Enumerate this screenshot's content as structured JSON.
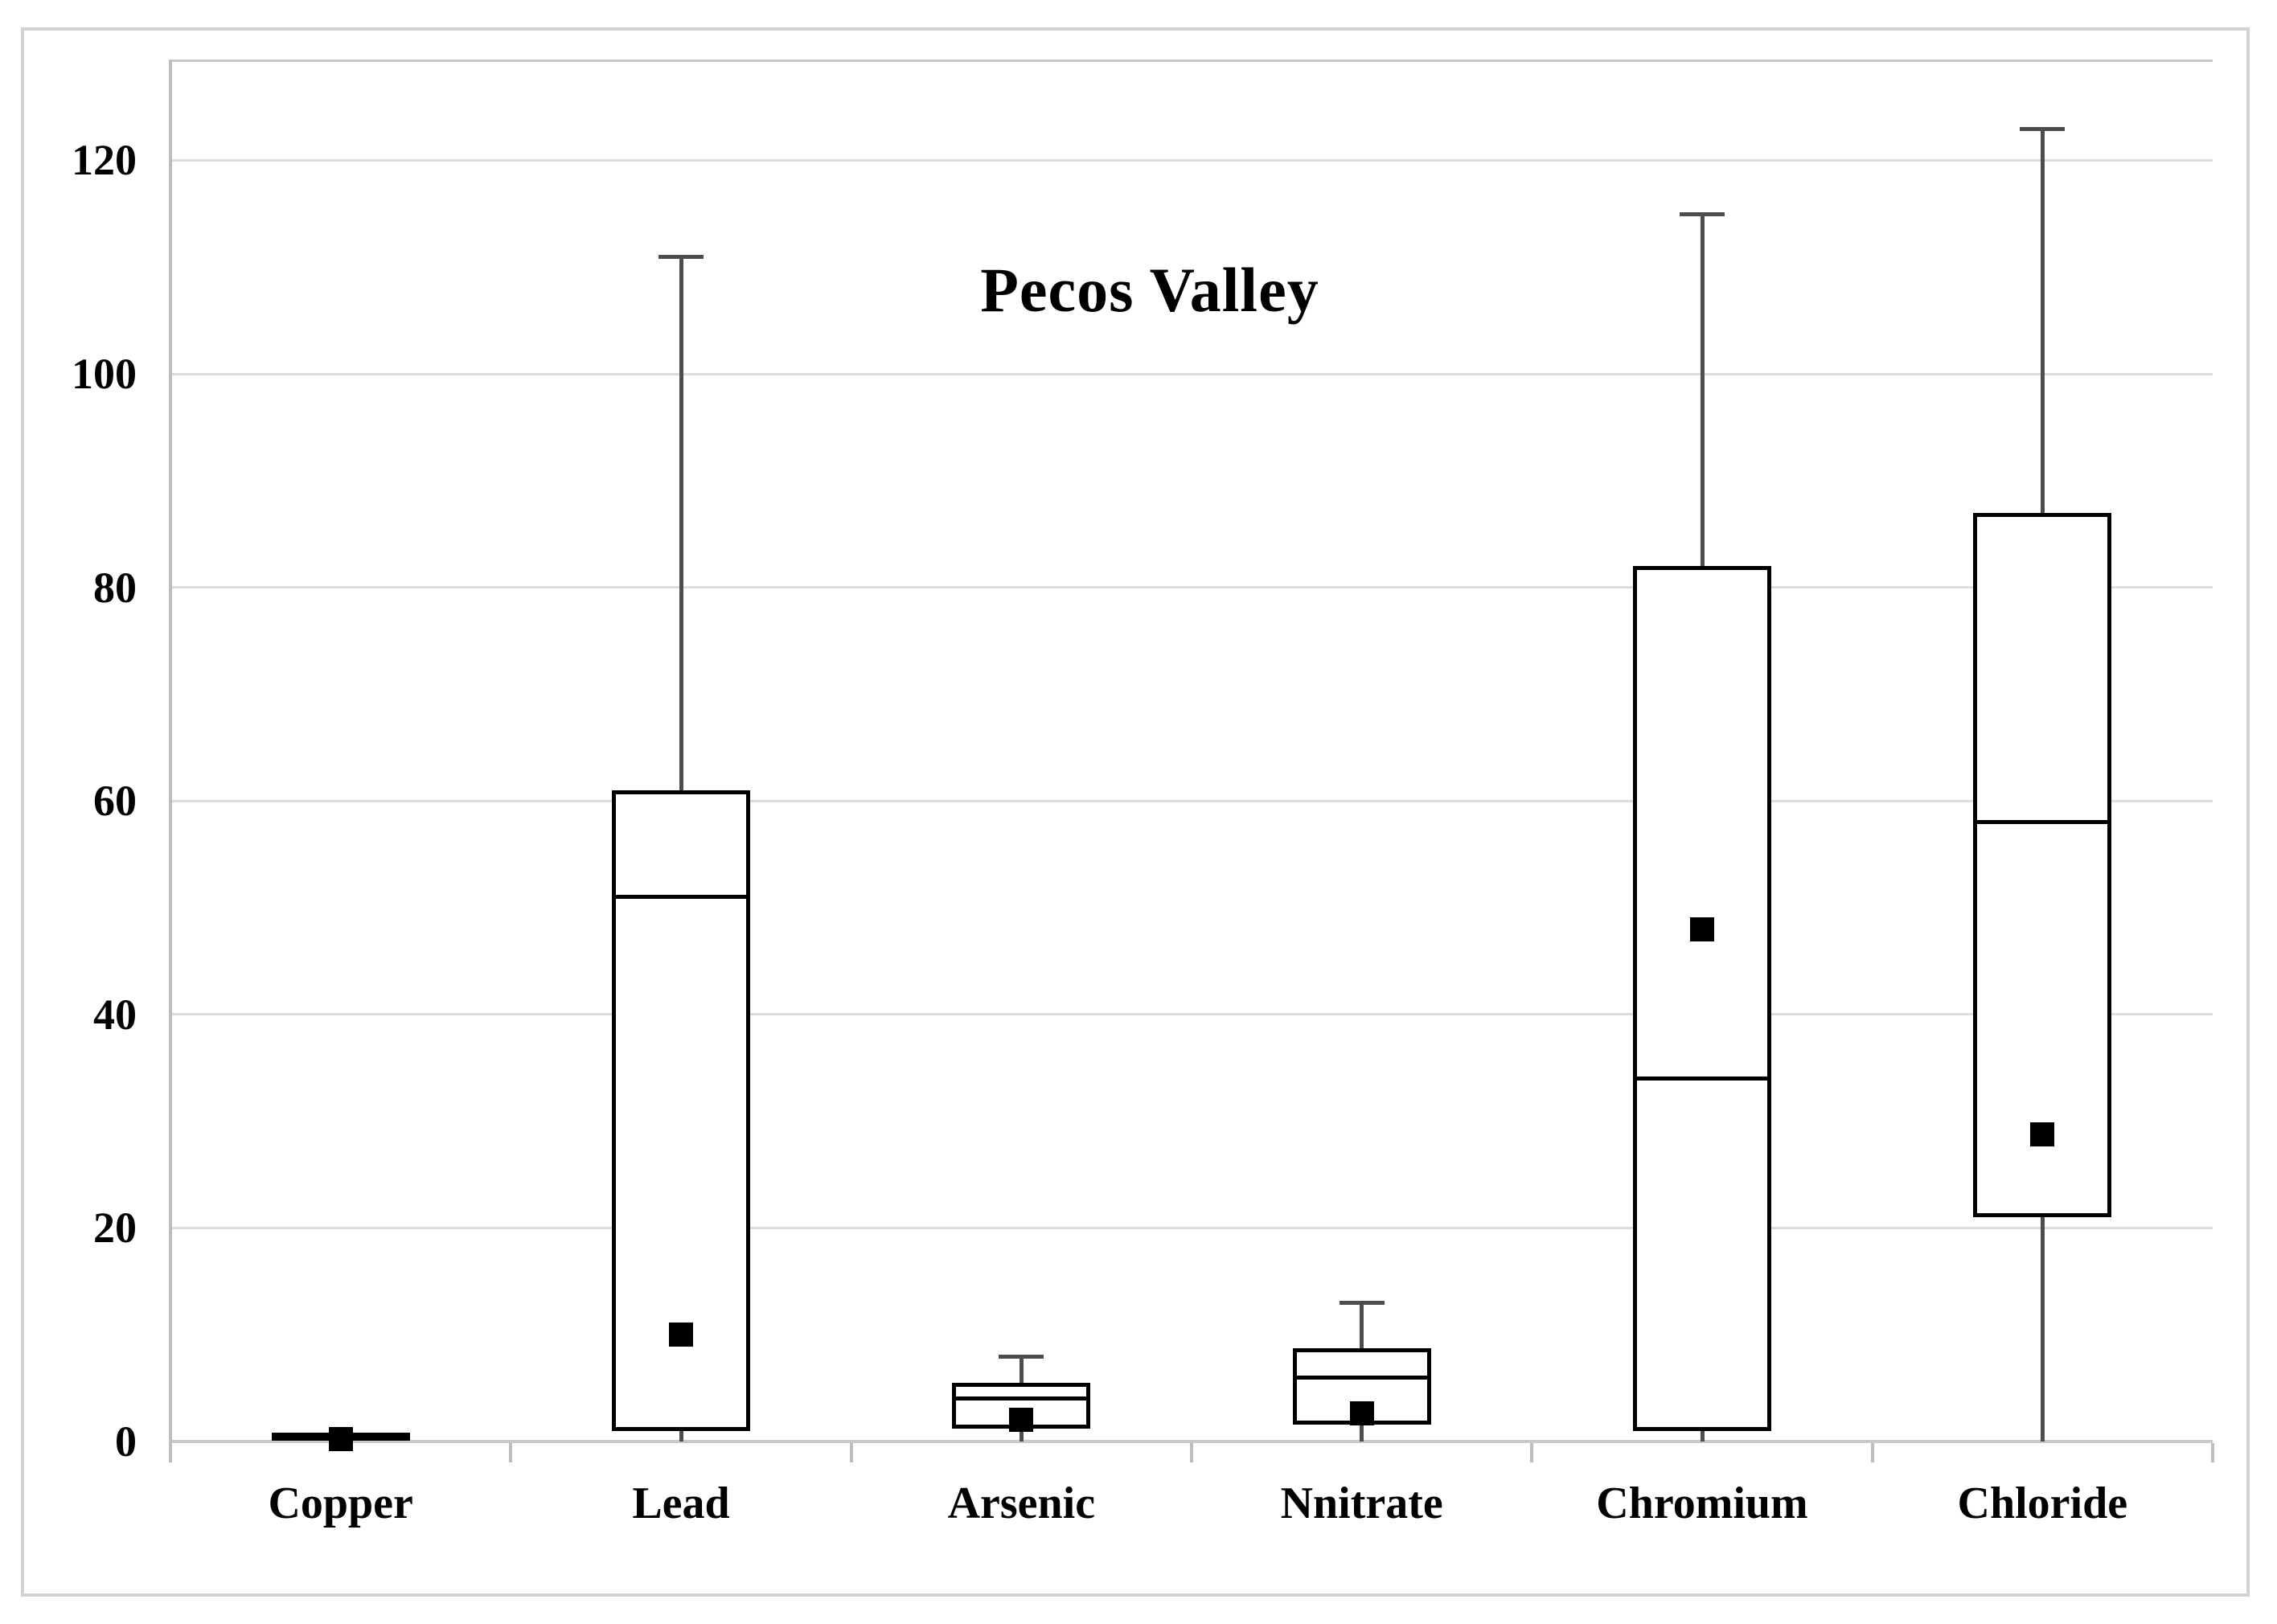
{
  "chart_data": {
    "type": "box",
    "title": "Pecos Valley",
    "categories": [
      "Copper",
      "Lead",
      "Arsenic",
      "Nnitrate",
      "Chromium",
      "Chloride"
    ],
    "series": [
      {
        "name": "Copper",
        "min": 0,
        "q1": 0.3,
        "median": 0.5,
        "q3": 0.8,
        "max": 0.9,
        "mean": 0.2
      },
      {
        "name": "Lead",
        "min": 0,
        "q1": 1,
        "median": 51,
        "q3": 61,
        "max": 111,
        "mean": 10
      },
      {
        "name": "Arsenic",
        "min": 0,
        "q1": 1.2,
        "median": 4,
        "q3": 5.5,
        "max": 8,
        "mean": 2
      },
      {
        "name": "Nnitrate",
        "min": 0,
        "q1": 1.6,
        "median": 6,
        "q3": 8.7,
        "max": 13,
        "mean": 2.6
      },
      {
        "name": "Chromium",
        "min": 0,
        "q1": 1,
        "median": 34,
        "q3": 82,
        "max": 115,
        "mean": 48
      },
      {
        "name": "Chloride",
        "min": 0,
        "q1": 21,
        "median": 58,
        "q3": 87,
        "max": 123,
        "mean": 28.8
      }
    ],
    "yticks": [
      0,
      20,
      40,
      60,
      80,
      100,
      120
    ],
    "ylim": [
      0,
      129
    ],
    "xlabel": "",
    "ylabel": "",
    "grid": true,
    "legend": false,
    "colors": {
      "background": "#ffffff",
      "figure_border": "#d2d2d2",
      "gridline": "#dcdcdc",
      "axis_line": "#c9c9c9",
      "axis_stub": "#bdbdbd",
      "box_border": "#000000",
      "median": "#000000",
      "mean_marker": "#000000",
      "whisker": "#4d4d4d",
      "text": "#000000"
    }
  }
}
